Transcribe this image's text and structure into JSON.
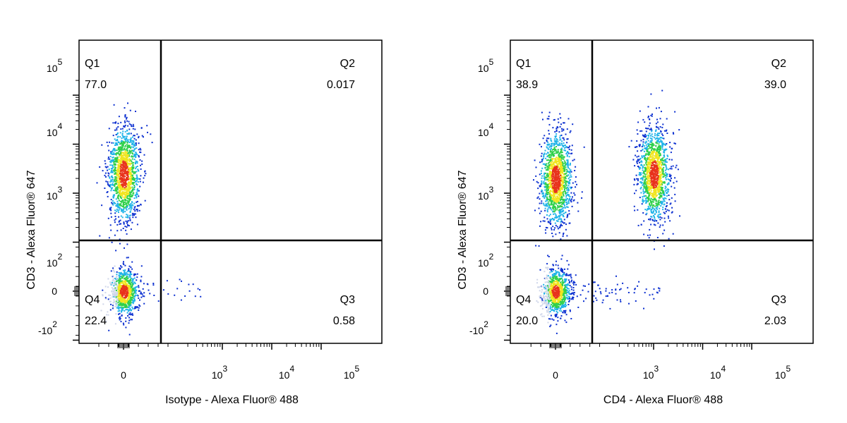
{
  "colors": {
    "frame": "#000000",
    "density_low": "#cfd6ea",
    "density_blue": "#0b2fd0",
    "density_cyan": "#1fb3e8",
    "density_green": "#2fd04a",
    "density_yellow": "#f0e51f",
    "density_red": "#e8331c"
  },
  "chart_data": [
    {
      "type": "scatter",
      "subtype": "flow-cytometry-density-plot",
      "xlabel": "Isotype - Alexa Fluor® 488",
      "ylabel": "CD3 - Alexa Fluor® 647",
      "x_scale": "biexponential",
      "y_scale": "biexponential",
      "x_tick_labels": [
        "0",
        "10^3",
        "10^4",
        "10^5"
      ],
      "y_tick_labels": [
        "10^5",
        "10^4",
        "10^3",
        "10^2",
        "0",
        "-10^2"
      ],
      "x_ticks": [
        {
          "base": "",
          "exp": "",
          "plain": "0"
        },
        {
          "base": "10",
          "exp": "3"
        },
        {
          "base": "10",
          "exp": "4"
        },
        {
          "base": "10",
          "exp": "5"
        }
      ],
      "y_ticks": [
        {
          "base": "10",
          "exp": "5"
        },
        {
          "base": "10",
          "exp": "4"
        },
        {
          "base": "10",
          "exp": "3"
        },
        {
          "base": "10",
          "exp": "2"
        },
        {
          "base": "",
          "exp": "",
          "plain": "0"
        },
        {
          "base": "-10",
          "exp": "2"
        }
      ],
      "quadrants": [
        {
          "name": "Q1",
          "value": "77.0"
        },
        {
          "name": "Q2",
          "value": "0.017"
        },
        {
          "name": "Q3",
          "value": "0.58"
        },
        {
          "name": "Q4",
          "value": "22.4"
        }
      ],
      "populations": [
        {
          "quadrant": "Q1",
          "x": 0,
          "y": 2500
        },
        {
          "quadrant": "Q4",
          "x": 0,
          "y": 0
        }
      ],
      "grid": false,
      "legend": "none"
    },
    {
      "type": "scatter",
      "subtype": "flow-cytometry-density-plot",
      "xlabel": "CD4 - Alexa Fluor® 488",
      "ylabel": "CD3 - Alexa Fluor® 647",
      "x_scale": "biexponential",
      "y_scale": "biexponential",
      "x_tick_labels": [
        "0",
        "10^3",
        "10^4",
        "10^5"
      ],
      "y_tick_labels": [
        "10^5",
        "10^4",
        "10^3",
        "10^2",
        "0",
        "-10^2"
      ],
      "x_ticks": [
        {
          "base": "",
          "exp": "",
          "plain": "0"
        },
        {
          "base": "10",
          "exp": "3"
        },
        {
          "base": "10",
          "exp": "4"
        },
        {
          "base": "10",
          "exp": "5"
        }
      ],
      "y_ticks": [
        {
          "base": "10",
          "exp": "5"
        },
        {
          "base": "10",
          "exp": "4"
        },
        {
          "base": "10",
          "exp": "3"
        },
        {
          "base": "10",
          "exp": "2"
        },
        {
          "base": "",
          "exp": "",
          "plain": "0"
        },
        {
          "base": "-10",
          "exp": "2"
        }
      ],
      "quadrants": [
        {
          "name": "Q1",
          "value": "38.9"
        },
        {
          "name": "Q2",
          "value": "39.0"
        },
        {
          "name": "Q3",
          "value": "2.03"
        },
        {
          "name": "Q4",
          "value": "20.0"
        }
      ],
      "populations": [
        {
          "quadrant": "Q1",
          "x": 0,
          "y": 2000
        },
        {
          "quadrant": "Q2",
          "x": 1000,
          "y": 2500
        },
        {
          "quadrant": "Q4",
          "x": 0,
          "y": 0
        }
      ],
      "grid": false,
      "legend": "none"
    }
  ]
}
